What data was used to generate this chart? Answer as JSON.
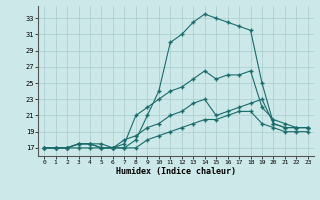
{
  "xlabel": "Humidex (Indice chaleur)",
  "bg_color": "#cde8e8",
  "grid_color": "#a8cccc",
  "line_color": "#1a6b6b",
  "xlim": [
    -0.5,
    23.5
  ],
  "ylim": [
    16.0,
    34.5
  ],
  "yticks": [
    17,
    19,
    21,
    23,
    25,
    27,
    29,
    31,
    33
  ],
  "xticks": [
    0,
    1,
    2,
    3,
    4,
    5,
    6,
    7,
    8,
    9,
    10,
    11,
    12,
    13,
    14,
    15,
    16,
    17,
    18,
    19,
    20,
    21,
    22,
    23
  ],
  "line1_y": [
    17,
    17,
    17,
    17.5,
    17.5,
    17.5,
    17,
    17,
    18,
    21,
    24,
    30,
    31,
    32.5,
    33.5,
    33,
    32.5,
    32,
    31.5,
    25,
    20,
    19.5,
    19.5,
    19.5
  ],
  "line2_y": [
    17,
    17,
    17,
    17.5,
    17.5,
    17,
    17,
    17.5,
    21,
    22,
    23,
    24,
    24.5,
    25.5,
    26.5,
    25.5,
    26,
    26,
    26.5,
    22,
    20.5,
    20,
    19.5,
    19.5
  ],
  "line3_y": [
    17,
    17,
    17,
    17.5,
    17.5,
    17,
    17,
    18,
    18.5,
    19.5,
    20,
    21,
    21.5,
    22.5,
    23,
    21,
    21.5,
    22,
    22.5,
    23,
    20,
    19.5,
    19.5,
    19.5
  ],
  "line4_y": [
    17,
    17,
    17,
    17,
    17,
    17,
    17,
    17,
    17,
    18,
    18.5,
    19,
    19.5,
    20,
    20.5,
    20.5,
    21,
    21.5,
    21.5,
    20,
    19.5,
    19,
    19,
    19
  ]
}
